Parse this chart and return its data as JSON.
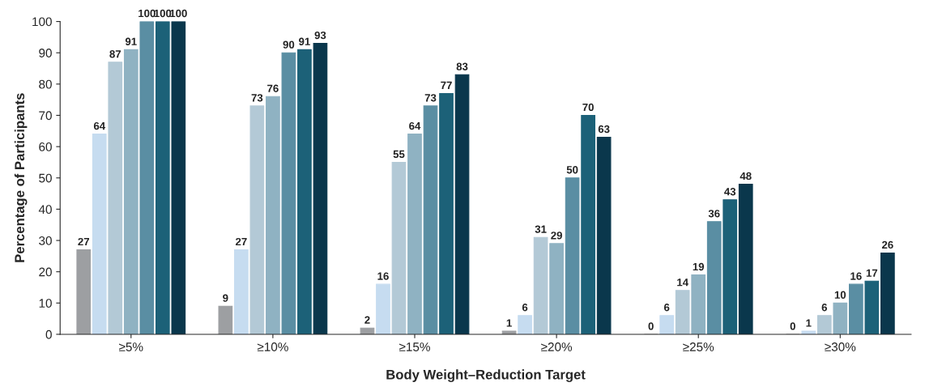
{
  "chart_data": {
    "type": "bar",
    "xlabel": "Body Weight–Reduction Target",
    "ylabel": "Percentage of Participants",
    "categories": [
      "≥5%",
      "≥10%",
      "≥15%",
      "≥20%",
      "≥25%",
      "≥30%"
    ],
    "series": [
      {
        "color": "#9d9fa2",
        "values": [
          27,
          9,
          2,
          1,
          0,
          0
        ]
      },
      {
        "color": "#c6dcf0",
        "values": [
          64,
          27,
          16,
          6,
          6,
          1
        ]
      },
      {
        "color": "#b3c9d6",
        "values": [
          87,
          73,
          55,
          31,
          14,
          6
        ]
      },
      {
        "color": "#8fb2c2",
        "values": [
          91,
          76,
          64,
          29,
          19,
          10
        ]
      },
      {
        "color": "#5a8ea3",
        "values": [
          100,
          90,
          73,
          50,
          36,
          16
        ]
      },
      {
        "color": "#1c6178",
        "values": [
          100,
          91,
          77,
          70,
          43,
          17
        ]
      },
      {
        "color": "#0a374c",
        "values": [
          100,
          93,
          83,
          63,
          48,
          26
        ]
      }
    ],
    "ylim": [
      0,
      100
    ],
    "yticks": [
      0,
      10,
      20,
      30,
      40,
      50,
      60,
      70,
      80,
      90,
      100
    ],
    "grid": false,
    "legend": false,
    "data_labels": true
  }
}
